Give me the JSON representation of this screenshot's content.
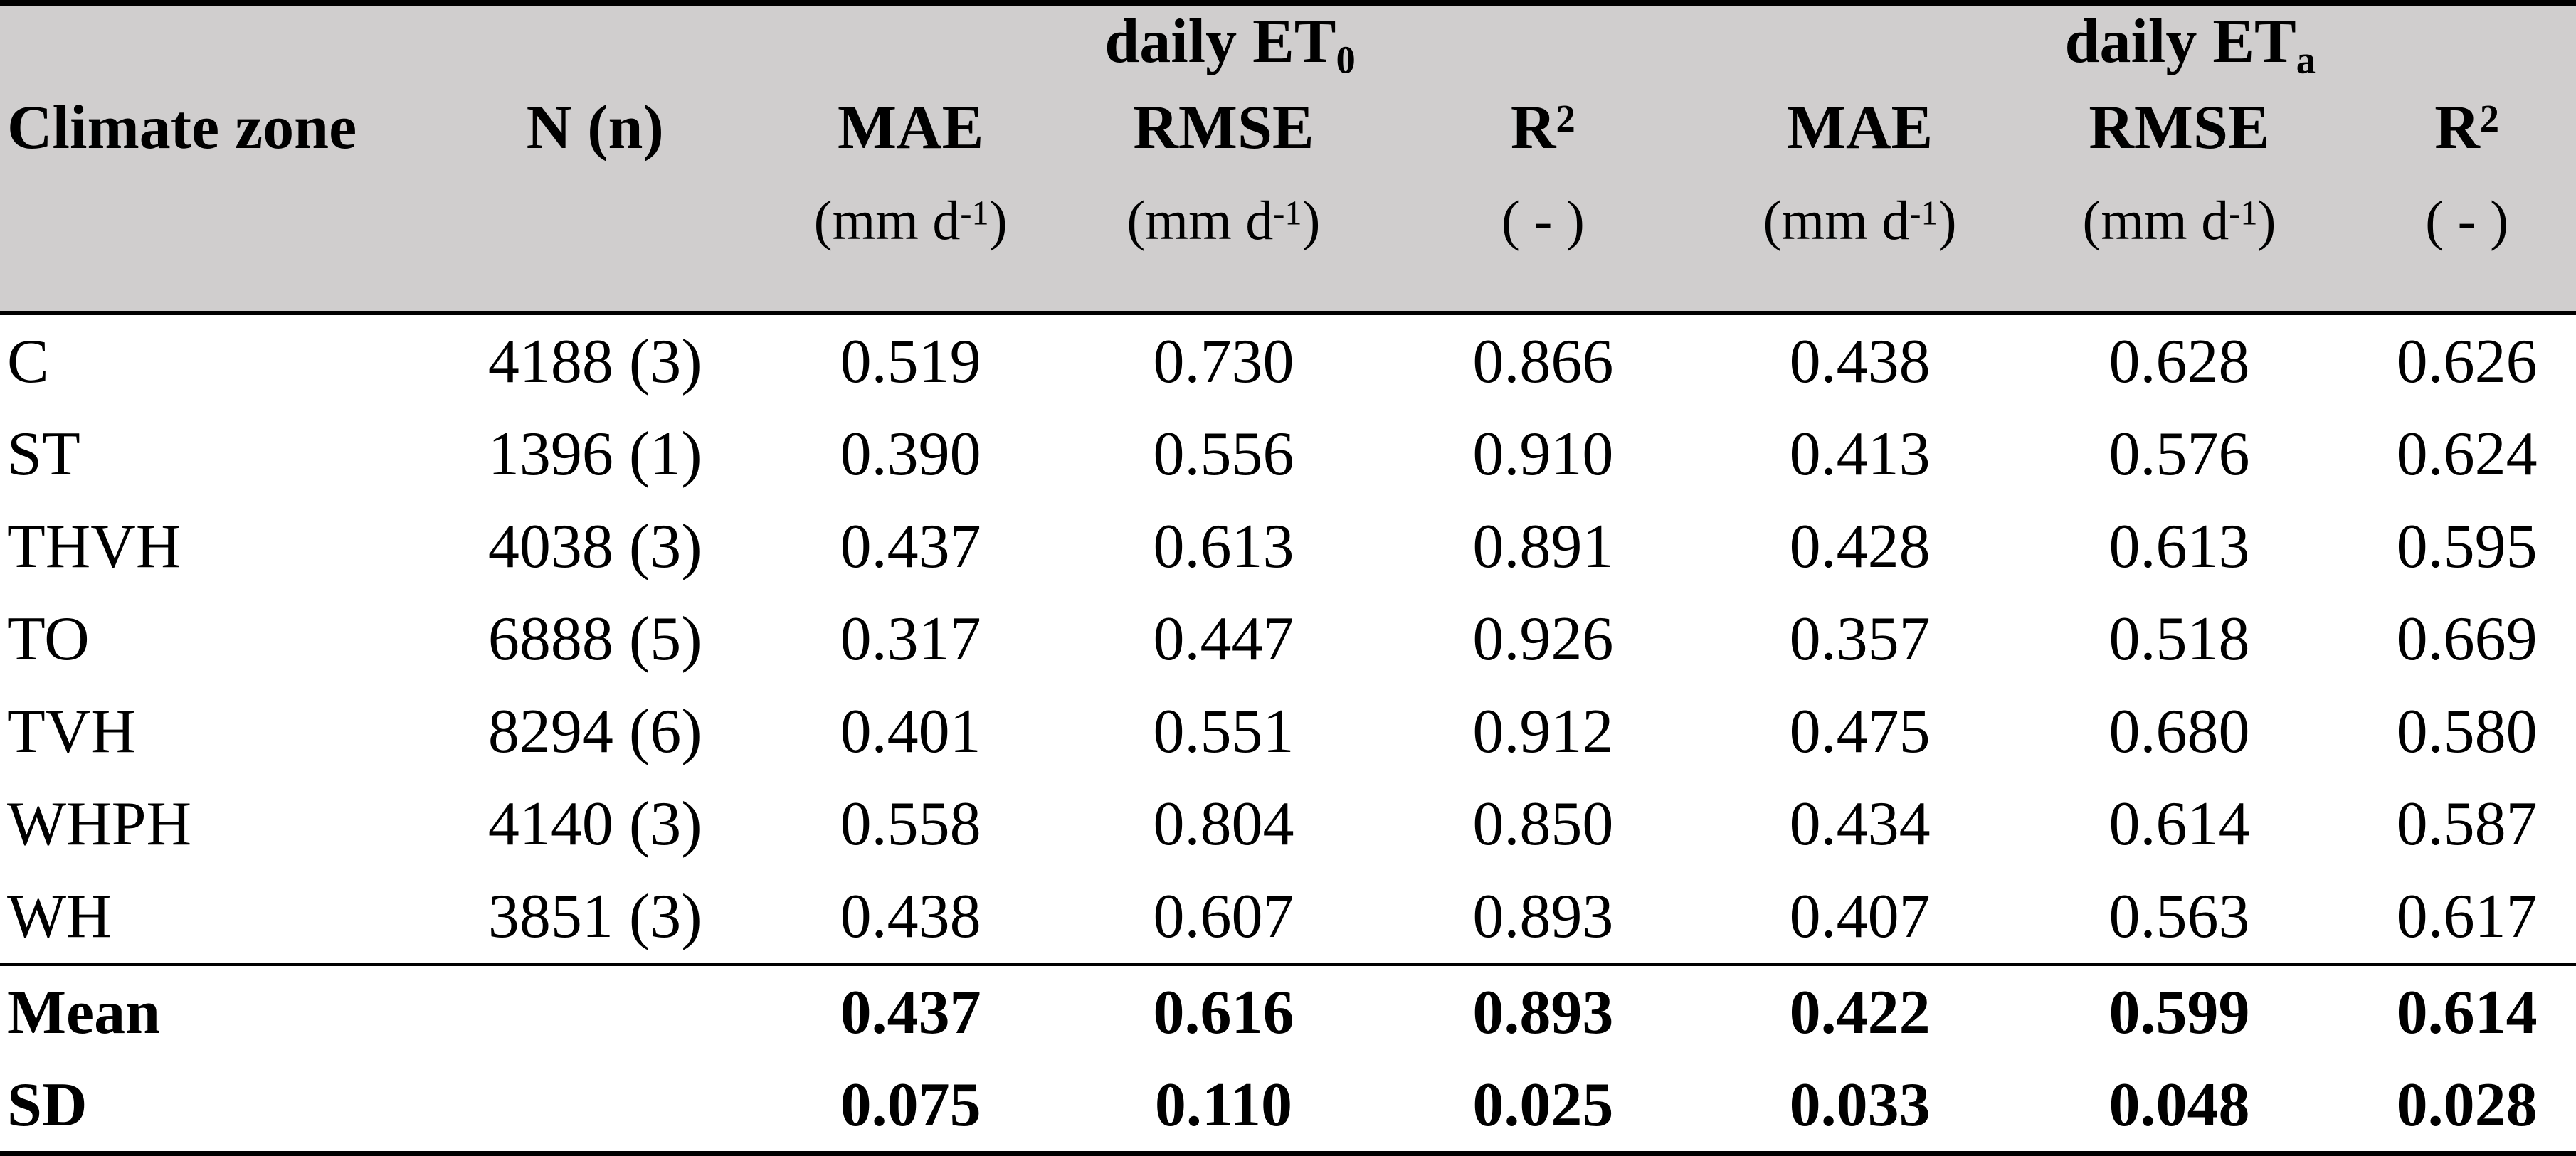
{
  "table": {
    "group_headers": [
      {
        "base": "daily ET",
        "sub": "0"
      },
      {
        "base": "daily ET",
        "sub": "a"
      }
    ],
    "columns": {
      "climate_zone": "Climate zone",
      "n": "N (n)",
      "mae": "MAE",
      "rmse": "RMSE",
      "r2_base": "R",
      "r2_sup": "2"
    },
    "units": {
      "mm_open": "(mm d",
      "mm_sup": "-1",
      "mm_close": ")",
      "dimensionless": "( - )"
    },
    "rows": [
      {
        "zone": "C",
        "n": "4188 (3)",
        "values": [
          "0.519",
          "0.730",
          "0.866",
          "0.438",
          "0.628",
          "0.626"
        ]
      },
      {
        "zone": "ST",
        "n": "1396 (1)",
        "values": [
          "0.390",
          "0.556",
          "0.910",
          "0.413",
          "0.576",
          "0.624"
        ]
      },
      {
        "zone": "THVH",
        "n": "4038 (3)",
        "values": [
          "0.437",
          "0.613",
          "0.891",
          "0.428",
          "0.613",
          "0.595"
        ]
      },
      {
        "zone": "TO",
        "n": "6888 (5)",
        "values": [
          "0.317",
          "0.447",
          "0.926",
          "0.357",
          "0.518",
          "0.669"
        ]
      },
      {
        "zone": "TVH",
        "n": "8294 (6)",
        "values": [
          "0.401",
          "0.551",
          "0.912",
          "0.475",
          "0.680",
          "0.580"
        ]
      },
      {
        "zone": "WHPH",
        "n": "4140 (3)",
        "values": [
          "0.558",
          "0.804",
          "0.850",
          "0.434",
          "0.614",
          "0.587"
        ]
      },
      {
        "zone": "WH",
        "n": "3851 (3)",
        "values": [
          "0.438",
          "0.607",
          "0.893",
          "0.407",
          "0.563",
          "0.617"
        ]
      }
    ],
    "summary_rows": [
      {
        "zone": "Mean",
        "n": "",
        "values": [
          "0.437",
          "0.616",
          "0.893",
          "0.422",
          "0.599",
          "0.614"
        ]
      },
      {
        "zone": "SD",
        "n": "",
        "values": [
          "0.075",
          "0.110",
          "0.025",
          "0.033",
          "0.048",
          "0.028"
        ]
      }
    ],
    "colors": {
      "header_bg": "#d0cece",
      "rule": "#000000"
    }
  }
}
